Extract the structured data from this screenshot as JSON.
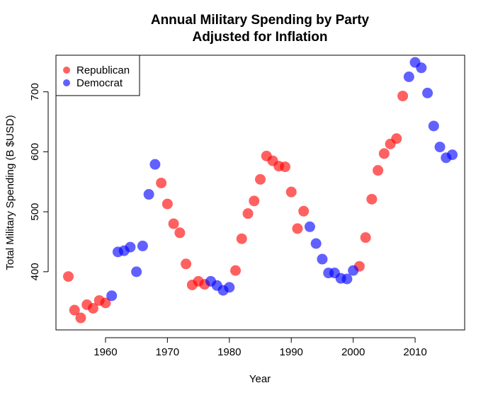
{
  "chart_data": {
    "type": "scatter",
    "title": "Annual Military Spending by Party",
    "subtitle": "Adjusted for Inflation",
    "xlabel": "Year",
    "ylabel": "Total Military Spending (B $USD)",
    "xlim": [
      1952,
      2018
    ],
    "ylim": [
      303,
      761
    ],
    "x_ticks": [
      1960,
      1970,
      1980,
      1990,
      2000,
      2010
    ],
    "y_ticks": [
      400,
      500,
      600,
      700
    ],
    "grid": false,
    "legend_position": "top-left",
    "series": [
      {
        "name": "Republican",
        "color": "#FF0000",
        "points": [
          {
            "x": 1954,
            "y": 392
          },
          {
            "x": 1955,
            "y": 336
          },
          {
            "x": 1956,
            "y": 323
          },
          {
            "x": 1957,
            "y": 345
          },
          {
            "x": 1958,
            "y": 339
          },
          {
            "x": 1959,
            "y": 352
          },
          {
            "x": 1960,
            "y": 348
          },
          {
            "x": 1969,
            "y": 548
          },
          {
            "x": 1970,
            "y": 513
          },
          {
            "x": 1971,
            "y": 480
          },
          {
            "x": 1972,
            "y": 465
          },
          {
            "x": 1973,
            "y": 413
          },
          {
            "x": 1974,
            "y": 378
          },
          {
            "x": 1975,
            "y": 384
          },
          {
            "x": 1976,
            "y": 379
          },
          {
            "x": 1981,
            "y": 402
          },
          {
            "x": 1982,
            "y": 455
          },
          {
            "x": 1983,
            "y": 497
          },
          {
            "x": 1984,
            "y": 518
          },
          {
            "x": 1985,
            "y": 554
          },
          {
            "x": 1986,
            "y": 593
          },
          {
            "x": 1987,
            "y": 585
          },
          {
            "x": 1988,
            "y": 576
          },
          {
            "x": 1989,
            "y": 575
          },
          {
            "x": 1990,
            "y": 533
          },
          {
            "x": 1991,
            "y": 472
          },
          {
            "x": 1992,
            "y": 501
          },
          {
            "x": 2001,
            "y": 409
          },
          {
            "x": 2002,
            "y": 457
          },
          {
            "x": 2003,
            "y": 521
          },
          {
            "x": 2004,
            "y": 569
          },
          {
            "x": 2005,
            "y": 597
          },
          {
            "x": 2006,
            "y": 613
          },
          {
            "x": 2007,
            "y": 622
          },
          {
            "x": 2008,
            "y": 693
          }
        ]
      },
      {
        "name": "Democrat",
        "color": "#0000FF",
        "points": [
          {
            "x": 1961,
            "y": 360
          },
          {
            "x": 1962,
            "y": 433
          },
          {
            "x": 1963,
            "y": 435
          },
          {
            "x": 1964,
            "y": 441
          },
          {
            "x": 1965,
            "y": 400
          },
          {
            "x": 1966,
            "y": 443
          },
          {
            "x": 1967,
            "y": 529
          },
          {
            "x": 1968,
            "y": 579
          },
          {
            "x": 1977,
            "y": 384
          },
          {
            "x": 1978,
            "y": 377
          },
          {
            "x": 1979,
            "y": 369
          },
          {
            "x": 1980,
            "y": 374
          },
          {
            "x": 1993,
            "y": 475
          },
          {
            "x": 1994,
            "y": 447
          },
          {
            "x": 1995,
            "y": 421
          },
          {
            "x": 1996,
            "y": 398
          },
          {
            "x": 1997,
            "y": 398
          },
          {
            "x": 1998,
            "y": 389
          },
          {
            "x": 1999,
            "y": 388
          },
          {
            "x": 2000,
            "y": 402
          },
          {
            "x": 2009,
            "y": 725
          },
          {
            "x": 2010,
            "y": 749
          },
          {
            "x": 2011,
            "y": 740
          },
          {
            "x": 2012,
            "y": 698
          },
          {
            "x": 2013,
            "y": 643
          },
          {
            "x": 2014,
            "y": 608
          },
          {
            "x": 2015,
            "y": 590
          },
          {
            "x": 2016,
            "y": 595
          }
        ]
      }
    ]
  }
}
